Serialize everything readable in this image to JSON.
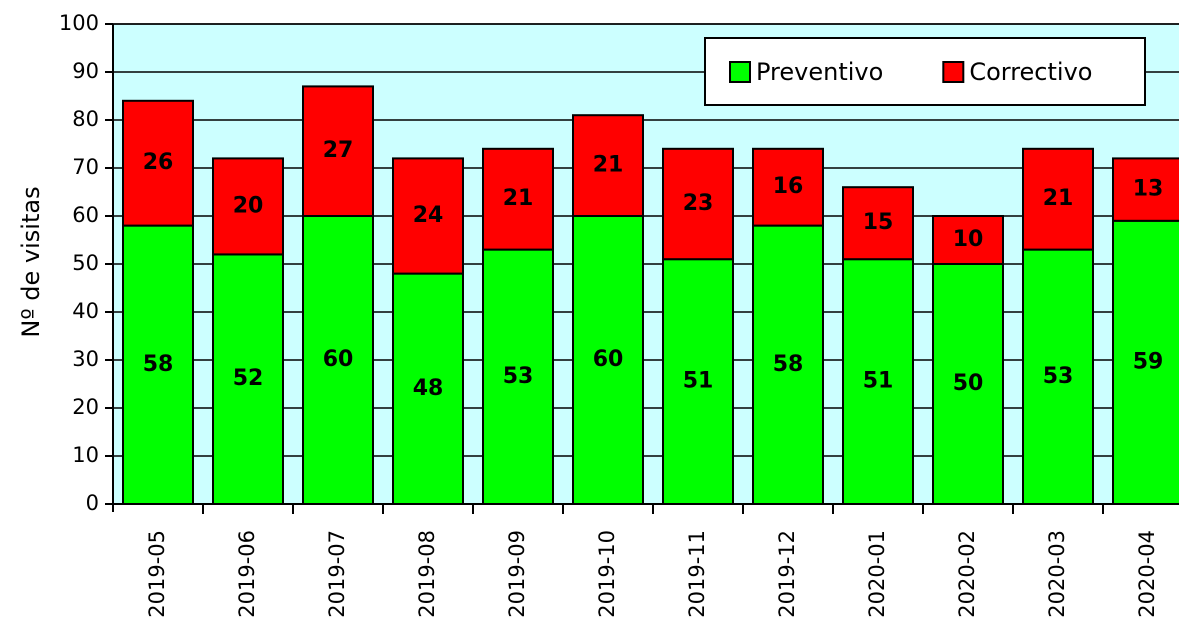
{
  "chart_data": {
    "type": "stacked-bar",
    "y_label": "Nº de visitas",
    "categories": [
      "2019-05",
      "2019-06",
      "2019-07",
      "2019-08",
      "2019-09",
      "2019-10",
      "2019-11",
      "2019-12",
      "2020-01",
      "2020-02",
      "2020-03",
      "2020-04"
    ],
    "series": [
      {
        "name": "Preventivo",
        "color": "#00ff00",
        "values": [
          58,
          52,
          60,
          48,
          53,
          60,
          51,
          58,
          51,
          50,
          53,
          59
        ]
      },
      {
        "name": "Correctivo",
        "color": "#ff0000",
        "values": [
          26,
          20,
          27,
          24,
          21,
          21,
          23,
          16,
          15,
          10,
          21,
          13
        ]
      }
    ],
    "ylim": [
      0,
      100
    ],
    "yticks": [
      0,
      10,
      20,
      30,
      40,
      50,
      60,
      70,
      80,
      90,
      100
    ],
    "grid": true,
    "legend": "top-right",
    "background": "#ccffff"
  }
}
